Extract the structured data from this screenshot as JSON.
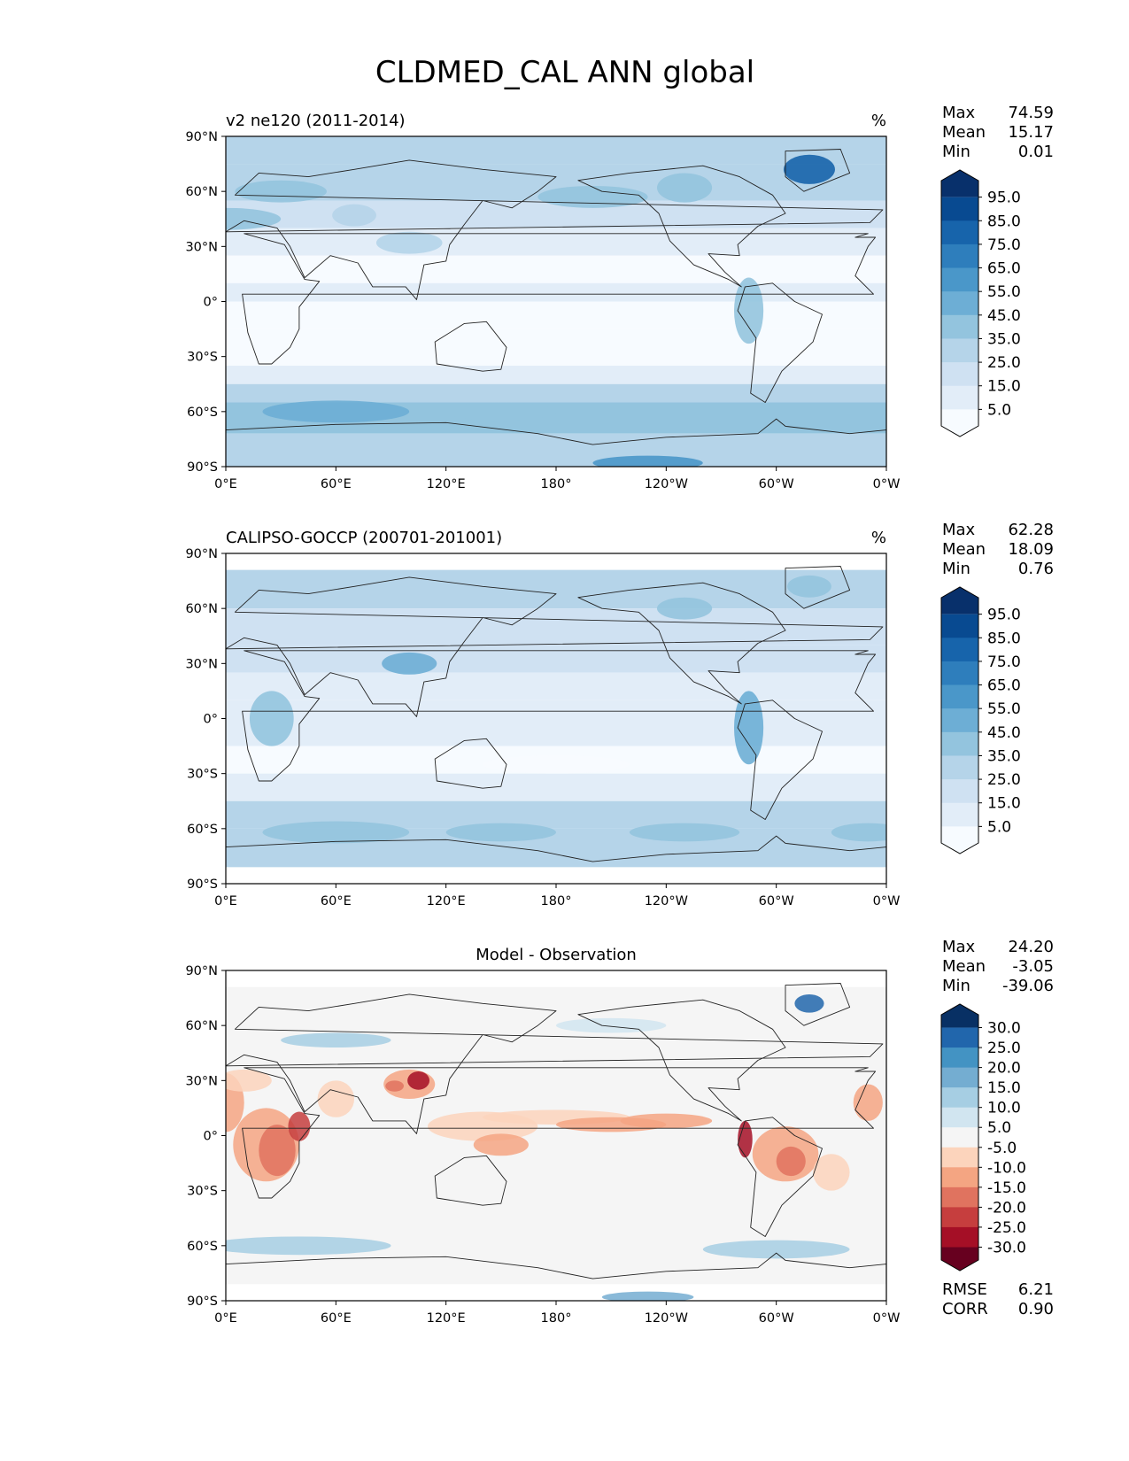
{
  "figure": {
    "title": "CLDMED_CAL ANN global"
  },
  "colors": {
    "blues": [
      "#f7fbff",
      "#e2edf8",
      "#cfe1f2",
      "#b5d4e9",
      "#93c4de",
      "#6daed5",
      "#4a97c9",
      "#2e7ebc",
      "#1764ab",
      "#084a91",
      "#08306b"
    ],
    "rdbu": [
      "#67001f",
      "#a50f26",
      "#c63e3e",
      "#e0735f",
      "#f4a582",
      "#fcd4bc",
      "#f5f5f5",
      "#d1e5f0",
      "#a6cee3",
      "#74add1",
      "#4393c3",
      "#2166ac",
      "#083064"
    ]
  },
  "chart_data": [
    {
      "type": "heatmap",
      "title": "v2 ne120 (2011-2014)",
      "units": "%",
      "stats": {
        "labels": [
          "Max",
          "Mean",
          "Min"
        ],
        "values": [
          "74.59",
          "15.17",
          "0.01"
        ]
      },
      "xticks": [
        "0°E",
        "60°E",
        "120°E",
        "180°",
        "120°W",
        "60°W",
        "0°W"
      ],
      "yticks": [
        "90°N",
        "60°N",
        "30°N",
        "0°",
        "30°S",
        "60°S",
        "90°S"
      ],
      "xlim": [
        0,
        360
      ],
      "ylim": [
        -90,
        90
      ],
      "colorbar": {
        "levels": [
          5,
          15,
          25,
          35,
          45,
          55,
          65,
          75,
          85,
          95
        ],
        "labels": [
          "95.0",
          "85.0",
          "75.0",
          "65.0",
          "55.0",
          "45.0",
          "35.0",
          "25.0",
          "15.0",
          "5.0"
        ],
        "extend": "both"
      }
    },
    {
      "type": "heatmap",
      "title": "CALIPSO-GOCCP (200701-201001)",
      "units": "%",
      "stats": {
        "labels": [
          "Max",
          "Mean",
          "Min"
        ],
        "values": [
          "62.28",
          "18.09",
          "0.76"
        ]
      },
      "xticks": [
        "0°E",
        "60°E",
        "120°E",
        "180°",
        "120°W",
        "60°W",
        "0°W"
      ],
      "yticks": [
        "90°N",
        "60°N",
        "30°N",
        "0°",
        "30°S",
        "60°S",
        "90°S"
      ],
      "xlim": [
        0,
        360
      ],
      "ylim": [
        -90,
        90
      ],
      "colorbar": {
        "levels": [
          5,
          15,
          25,
          35,
          45,
          55,
          65,
          75,
          85,
          95
        ],
        "labels": [
          "95.0",
          "85.0",
          "75.0",
          "65.0",
          "55.0",
          "45.0",
          "35.0",
          "25.0",
          "15.0",
          "5.0"
        ],
        "extend": "both"
      }
    },
    {
      "type": "heatmap",
      "title": "Model - Observation",
      "units": "",
      "stats": {
        "labels": [
          "Max",
          "Mean",
          "Min"
        ],
        "values": [
          "24.20",
          "-3.05",
          "-39.06"
        ]
      },
      "metrics": {
        "labels": [
          "RMSE",
          "CORR"
        ],
        "values": [
          "6.21",
          "0.90"
        ]
      },
      "xticks": [
        "0°E",
        "60°E",
        "120°E",
        "180°",
        "120°W",
        "60°W",
        "0°W"
      ],
      "yticks": [
        "90°N",
        "60°N",
        "30°N",
        "0°",
        "30°S",
        "60°S",
        "90°S"
      ],
      "xlim": [
        0,
        360
      ],
      "ylim": [
        -90,
        90
      ],
      "colorbar": {
        "levels": [
          -30,
          -25,
          -20,
          -15,
          -10,
          -5,
          5,
          10,
          15,
          20,
          25,
          30
        ],
        "labels": [
          "30.0",
          "25.0",
          "20.0",
          "15.0",
          "10.0",
          "5.0",
          "-5.0",
          "-10.0",
          "-15.0",
          "-20.0",
          "-25.0",
          "-30.0"
        ],
        "extend": "both"
      }
    }
  ]
}
